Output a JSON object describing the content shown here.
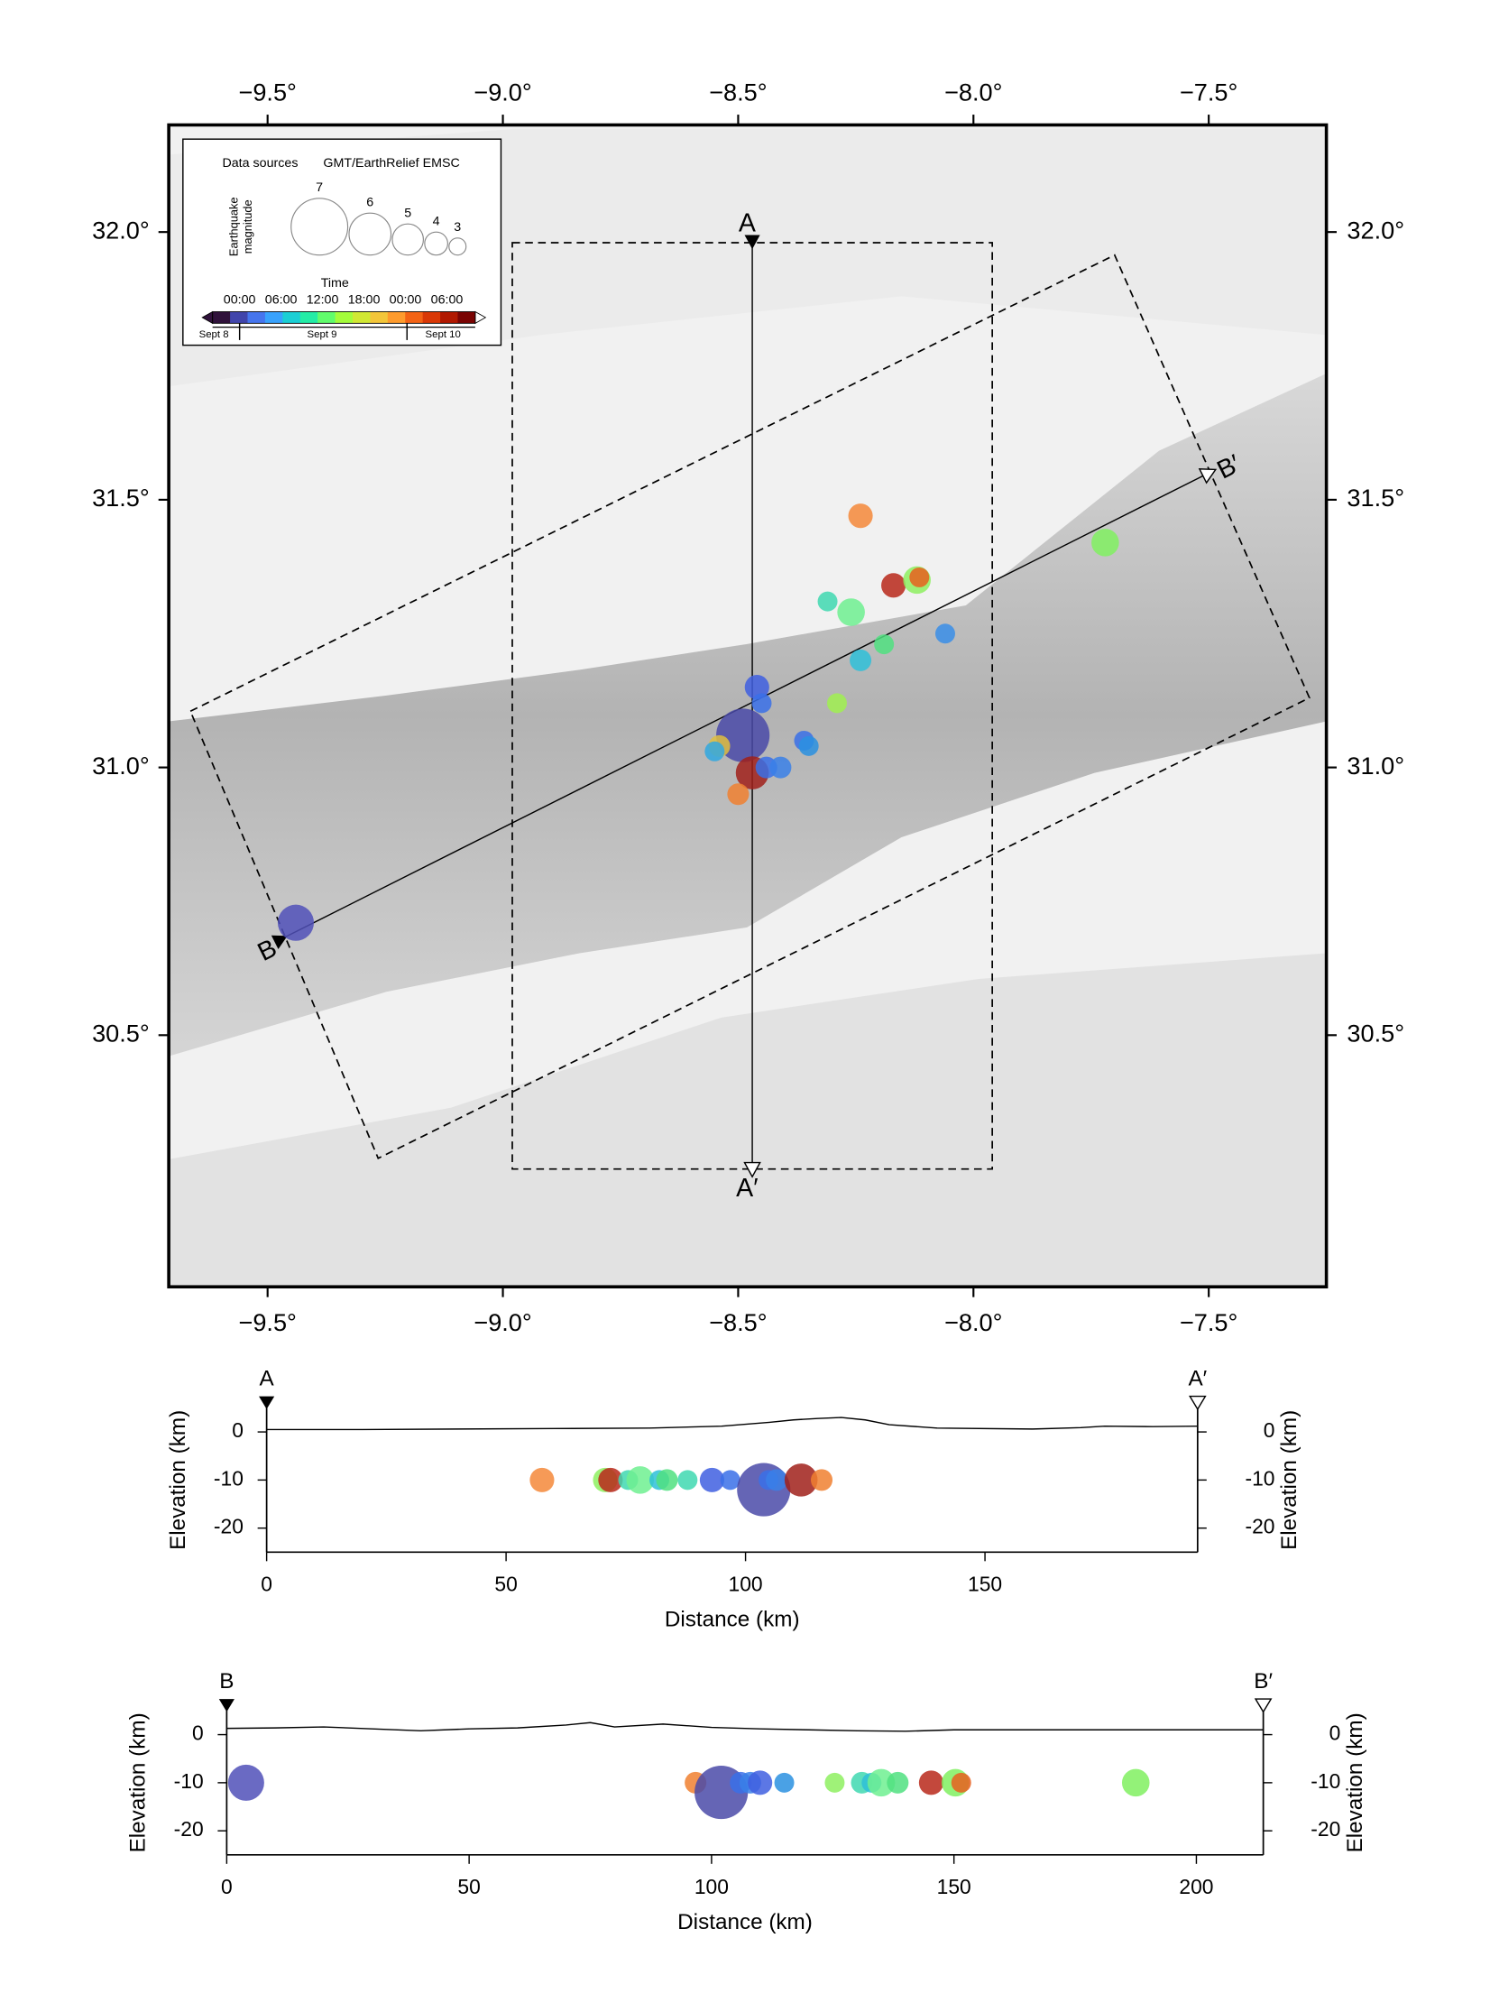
{
  "map": {
    "xlim": [
      -9.71,
      -7.25
    ],
    "ylim": [
      30.03,
      32.2
    ],
    "xticks": [
      {
        "value": -9.5,
        "label": "−9.5°"
      },
      {
        "value": -9.0,
        "label": "−9.0°"
      },
      {
        "value": -8.5,
        "label": "−8.5°"
      },
      {
        "value": -8.0,
        "label": "−8.0°"
      },
      {
        "value": -7.5,
        "label": "−7.5°"
      }
    ],
    "yticks": [
      {
        "value": 30.5,
        "label": "30.5°"
      },
      {
        "value": 31.0,
        "label": "31.0°"
      },
      {
        "value": 31.5,
        "label": "31.5°"
      },
      {
        "value": 32.0,
        "label": "32.0°"
      }
    ],
    "earthquakes": {
      "lon": [
        -8.49,
        -9.44,
        -8.24,
        -8.17,
        -8.12,
        -8.115,
        -8.31,
        -8.26,
        -8.06,
        -8.19,
        -8.24,
        -8.46,
        -8.45,
        -8.29,
        -8.47,
        -8.54,
        -8.55,
        -8.44,
        -8.41,
        -8.36,
        -8.35,
        -8.5,
        -7.72
      ],
      "lat": [
        31.06,
        30.71,
        31.47,
        31.34,
        31.35,
        31.355,
        31.31,
        31.29,
        31.25,
        31.23,
        31.2,
        31.15,
        31.12,
        31.12,
        30.99,
        31.04,
        31.03,
        31.0,
        31.0,
        31.05,
        31.04,
        30.95,
        31.42
      ],
      "magnitude": [
        6.8,
        5.5,
        4.2,
        4.2,
        4.6,
        3.5,
        3.5,
        4.6,
        3.5,
        3.5,
        3.8,
        4.2,
        3.5,
        3.5,
        5.2,
        3.8,
        3.5,
        3.8,
        3.8,
        3.5,
        3.5,
        3.8,
        4.6
      ],
      "colors": [
        "#4a4aa8",
        "#5050b8",
        "#f5883a",
        "#b8281a",
        "#8ef060",
        "#e8601e",
        "#40d8b0",
        "#6ef090",
        "#3a8ee8",
        "#50e080",
        "#2ec0d8",
        "#3f5fe0",
        "#3a70e8",
        "#a0f050",
        "#a0201a",
        "#e0c040",
        "#30a8e0",
        "#3a70e8",
        "#3a80e8",
        "#3a70e8",
        "#2a90e0",
        "#f08030",
        "#80f060"
      ]
    },
    "profiles": [
      {
        "start_label": "A",
        "end_label": "A′",
        "start": [
          -8.47,
          31.98
        ],
        "end": [
          -8.47,
          30.25
        ],
        "box": [
          [
            -8.98,
            31.98
          ],
          [
            -7.96,
            31.98
          ],
          [
            -7.96,
            30.25
          ],
          [
            -8.98,
            30.25
          ]
        ]
      },
      {
        "start_label": "B",
        "end_label": "B′",
        "start": [
          -9.47,
          30.68
        ],
        "end": [
          -7.5,
          31.55
        ],
        "box": [
          [
            -9.664,
            31.105
          ],
          [
            -7.7,
            31.957
          ],
          [
            -7.286,
            31.13
          ],
          [
            -9.265,
            30.27
          ]
        ]
      }
    ]
  },
  "legend": {
    "data_sources_label": "Data sources",
    "data_sources": "GMT/EarthRelief EMSC",
    "magnitude_label": [
      "Earthquake",
      "magnitude"
    ],
    "magnitudes": [
      7,
      6,
      5,
      4,
      3
    ],
    "time_label": "Time",
    "time_ticks": [
      "00:00",
      "06:00",
      "12:00",
      "18:00",
      "00:00",
      "06:00"
    ],
    "days": [
      "Sept 8",
      "Sept 9",
      "Sept 10"
    ],
    "colorbar": [
      "#30123b",
      "#4145ab",
      "#4675ed",
      "#39a2fc",
      "#1bcfd4",
      "#24eca6",
      "#61fc6c",
      "#a4fc3b",
      "#d1e834",
      "#f3c63a",
      "#fe9b2d",
      "#f36315",
      "#d93806",
      "#b11901",
      "#7a0403"
    ]
  },
  "cross_sections": [
    {
      "xlabel": "Distance (km)",
      "ylabel": "Elevation (km)",
      "xlim": [
        0,
        194.4
      ],
      "ylim": [
        -25,
        5
      ],
      "xticks": [
        0,
        50,
        100,
        150
      ],
      "yticks": [
        0,
        -10,
        -20
      ],
      "topography": {
        "distance": [
          0,
          20,
          40,
          60,
          80,
          95,
          105,
          110,
          115,
          120,
          125,
          130,
          140,
          160,
          170,
          175,
          185,
          194.4
        ],
        "elevation": [
          0.5,
          0.5,
          0.6,
          0.7,
          0.8,
          1.2,
          2,
          2.5,
          2.8,
          3,
          2.5,
          1.5,
          0.8,
          0.6,
          0.9,
          1.2,
          1.1,
          1.2
        ]
      },
      "earthquakes": {
        "distance": [
          57.5,
          70.7,
          71.8,
          75.5,
          78,
          82,
          83.6,
          87.9,
          93,
          96.8,
          103.8,
          104.8,
          106.5,
          111.6,
          115.9
        ],
        "depth": [
          -10,
          -10,
          -10,
          -10,
          -10,
          -10,
          -10,
          -10,
          -10,
          -10,
          -12,
          -10,
          -10,
          -10,
          -10
        ],
        "magnitude": [
          4.2,
          4.2,
          4.2,
          3.5,
          4.6,
          3.5,
          3.8,
          3.5,
          4.2,
          3.5,
          6.8,
          3.5,
          3.8,
          5.2,
          3.8
        ],
        "colors": [
          "#f5883a",
          "#8ef060",
          "#b8281a",
          "#40d8b0",
          "#6ef090",
          "#2ec0d8",
          "#50e080",
          "#40d8b0",
          "#3f5fe0",
          "#3a70e8",
          "#4a4aa8",
          "#3a70e8",
          "#3a80e8",
          "#a0201a",
          "#f08030"
        ]
      }
    },
    {
      "xlabel": "Distance (km)",
      "ylabel": "Elevation (km)",
      "xlim": [
        0,
        213.8
      ],
      "ylim": [
        -25,
        5
      ],
      "xticks": [
        0,
        50,
        100,
        150,
        200
      ],
      "yticks": [
        0,
        -10,
        -20
      ],
      "topography": {
        "distance": [
          0,
          10,
          20,
          30,
          40,
          50,
          60,
          70,
          75,
          80,
          90,
          100,
          110,
          120,
          130,
          140,
          150,
          160,
          180,
          200,
          213.8
        ],
        "elevation": [
          1.3,
          1.4,
          1.6,
          1.2,
          0.8,
          1.2,
          1.4,
          2,
          2.5,
          1.6,
          2.2,
          1.5,
          1.2,
          1,
          0.8,
          0.7,
          1,
          1,
          1,
          1,
          1
        ]
      },
      "earthquakes": {
        "distance": [
          4,
          96.7,
          102,
          106,
          108,
          110,
          115,
          125.4,
          131,
          133,
          135,
          138.4,
          145.3,
          150.3,
          151.5,
          187.5
        ],
        "depth": [
          -10,
          -10,
          -12,
          -10,
          -10,
          -10,
          -10,
          -10,
          -10,
          -10,
          -10,
          -10,
          -10,
          -10,
          -10,
          -10
        ],
        "magnitude": [
          5.5,
          3.8,
          6.8,
          3.8,
          3.8,
          4.2,
          3.5,
          3.5,
          3.8,
          3.5,
          4.6,
          3.8,
          4.2,
          4.6,
          3.5,
          4.6
        ],
        "colors": [
          "#5050b8",
          "#f08030",
          "#4a4aa8",
          "#3a70e8",
          "#3a80e8",
          "#3f5fe0",
          "#2a90e0",
          "#8ef060",
          "#40d8b0",
          "#2ec0d8",
          "#6ef090",
          "#50e080",
          "#b8281a",
          "#80f060",
          "#e8601e",
          "#80f060"
        ]
      }
    }
  ]
}
